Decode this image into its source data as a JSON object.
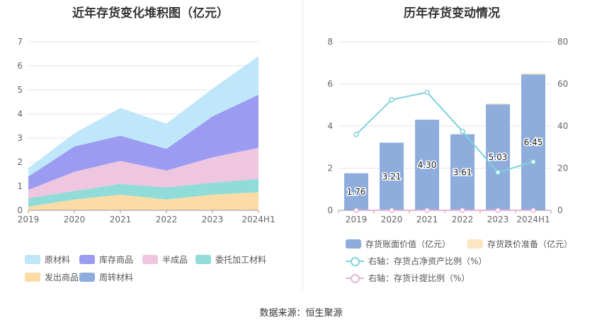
{
  "source": "数据来源：恒生聚源",
  "chart_data": [
    {
      "type": "area",
      "stacked": true,
      "title": "近年存货变化堆积图（亿元）",
      "categories": [
        "2019",
        "2020",
        "2021",
        "2022",
        "2023",
        "2024H1"
      ],
      "ylim": [
        0,
        7
      ],
      "yticks": [
        "0",
        "1",
        "2",
        "3",
        "4",
        "5",
        "6",
        "7"
      ],
      "grid": true,
      "legend_position": "bottom",
      "series": [
        {
          "name": "发出商品",
          "color": "#fbdca6",
          "values": [
            0.15,
            0.45,
            0.65,
            0.45,
            0.65,
            0.75
          ]
        },
        {
          "name": "委托加工材料",
          "color": "#8fdcd8",
          "values": [
            0.35,
            0.35,
            0.45,
            0.5,
            0.5,
            0.55
          ]
        },
        {
          "name": "半成品",
          "color": "#efc6e0",
          "values": [
            0.35,
            0.8,
            0.95,
            0.7,
            1.05,
            1.3
          ]
        },
        {
          "name": "库存商品",
          "color": "#9b9bf2",
          "values": [
            0.55,
            1.05,
            1.05,
            0.9,
            1.7,
            2.2
          ]
        },
        {
          "name": "原材料",
          "color": "#bfe6f9",
          "values": [
            0.35,
            0.55,
            1.15,
            1.05,
            1.15,
            1.6
          ]
        },
        {
          "name": "周转材料",
          "color": "#8eacdc",
          "values": [
            0.0,
            0.0,
            0.0,
            0.0,
            0.0,
            0.0
          ]
        }
      ],
      "legend_order": [
        "原材料",
        "库存商品",
        "半成品",
        "委托加工材料",
        "发出商品",
        "周转材料"
      ]
    },
    {
      "type": "bar+line",
      "title": "历年存货变动情况",
      "categories": [
        "2019",
        "2020",
        "2021",
        "2022",
        "2023",
        "2024H1"
      ],
      "ylim": [
        0,
        8
      ],
      "yticks": [
        "0",
        "2",
        "4",
        "6",
        "8"
      ],
      "y2lim": [
        0,
        80
      ],
      "y2ticks": [
        "0",
        "20",
        "40",
        "60",
        "80"
      ],
      "grid": true,
      "legend_position": "bottom",
      "bars": [
        {
          "name": "存货账面价值（亿元）",
          "color": "#8eacdc",
          "values": [
            1.76,
            3.21,
            4.3,
            3.61,
            5.03,
            6.45
          ],
          "labels": [
            "1.76",
            "3.21",
            "4.30",
            "3.61",
            "5.03",
            "6.45"
          ]
        },
        {
          "name": "存货跌价准备（亿元）",
          "color": "#fde5c0",
          "values": [
            0.0,
            0.0,
            0.0,
            0.0,
            0.04,
            0.05
          ]
        }
      ],
      "lines": [
        {
          "name": "右轴：存货占净资产比例（%）",
          "color": "#7fd3dc",
          "axis": "right",
          "values": [
            36,
            52.5,
            56,
            37.5,
            18,
            23
          ]
        },
        {
          "name": "右轴：存货计提比例（%）",
          "color": "#e9b4d6",
          "axis": "right",
          "values": [
            0,
            0,
            0,
            0,
            0,
            0
          ]
        }
      ]
    }
  ]
}
